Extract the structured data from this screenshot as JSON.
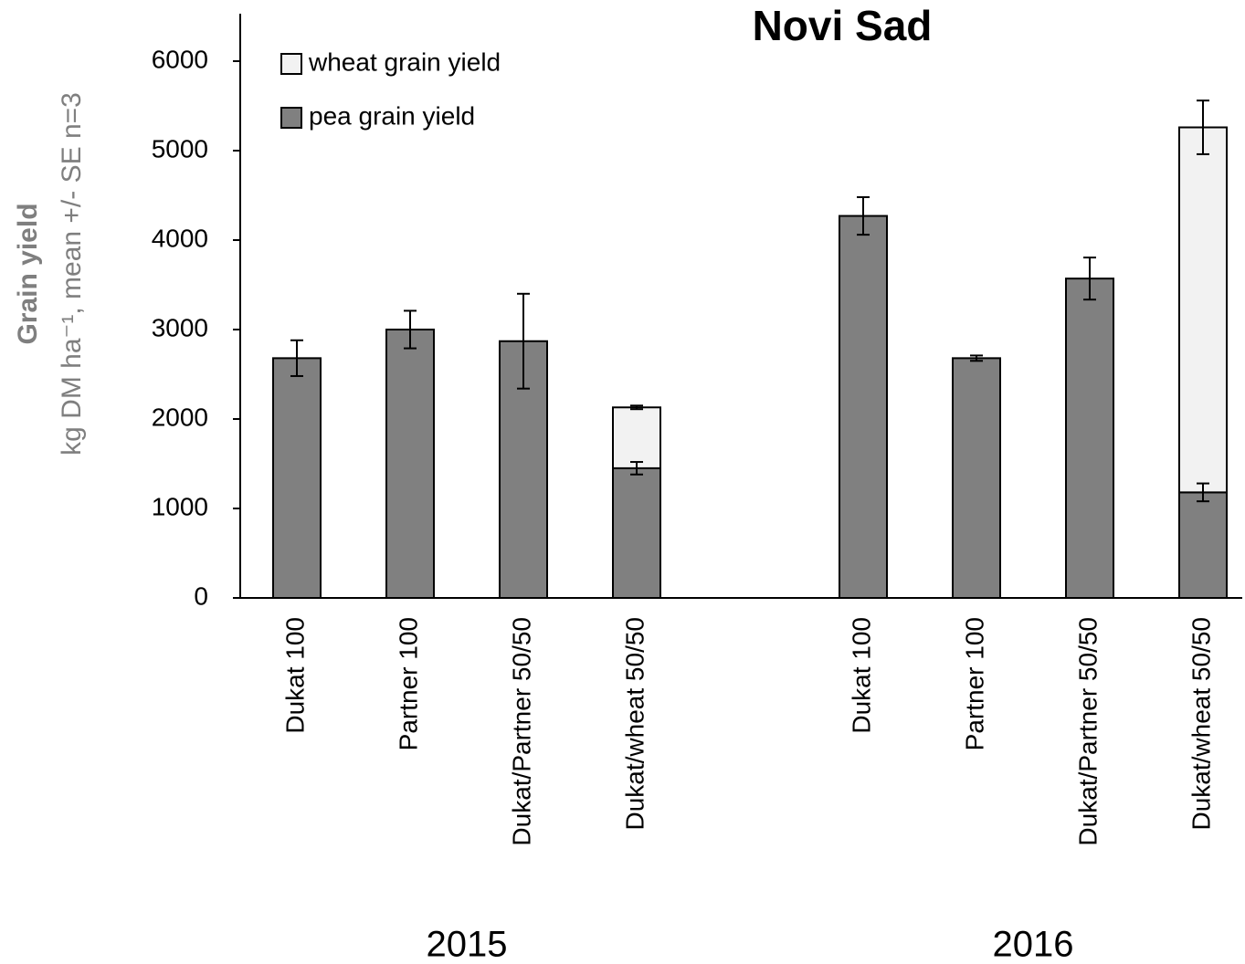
{
  "chart_data": {
    "type": "stacked_bar",
    "title": "Novi Sad",
    "ylabel": "Grain yield",
    "ylabel_sub": "kg DM ha⁻¹, mean +/- SE n=3",
    "categories": [
      "Dukat 100",
      "Partner 100",
      "Dukat/Partner 50/50",
      "Dukat/wheat 50/50",
      null,
      "Dukat 100",
      "Partner 100",
      "Dukat/Partner 50/50",
      "Dukat/wheat 50/50"
    ],
    "groups": [
      {
        "label": "2015",
        "from": 0,
        "to": 3
      },
      {
        "label": "2016",
        "from": 5,
        "to": 8
      }
    ],
    "series": [
      {
        "name": "pea grain yield",
        "color": "#808080",
        "values": [
          2680,
          3000,
          2870,
          1450,
          null,
          4270,
          2680,
          3570,
          1180
        ],
        "errors": [
          200,
          210,
          530,
          70,
          null,
          210,
          30,
          235,
          100
        ]
      },
      {
        "name": "wheat grain yield",
        "color": "#f2f2f2",
        "values": [
          null,
          null,
          null,
          680,
          null,
          null,
          null,
          null,
          4080
        ],
        "errors": [
          null,
          null,
          null,
          20,
          null,
          null,
          null,
          null,
          300
        ]
      }
    ],
    "ylim": [
      0,
      6000
    ],
    "yticks": [
      0,
      1000,
      2000,
      3000,
      4000,
      5000,
      6000
    ],
    "grid": false,
    "legend": "upper left"
  }
}
